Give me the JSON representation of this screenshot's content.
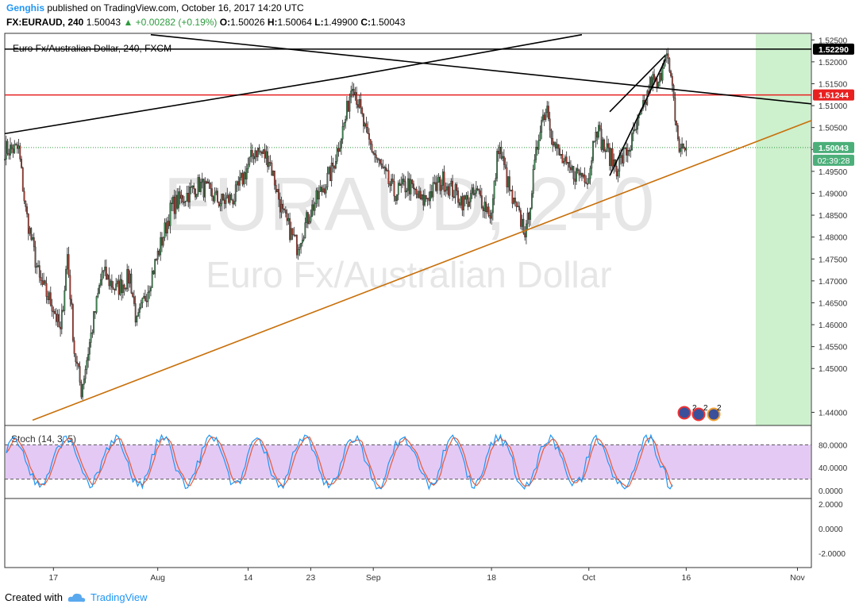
{
  "header": {
    "author": "Genghis",
    "published": "published on TradingView.com, October 16, 2017 14:20 UTC",
    "symbol": "FX:EURAUD, 240",
    "last": "1.50043",
    "change": "+0.00282 (+0.19%)",
    "o_label": "O:",
    "o_value": "1.50026",
    "h_label": "H:",
    "h_value": "1.50064",
    "l_label": "L:",
    "l_value": "1.49900",
    "c_label": "C:",
    "c_value": "1.50043"
  },
  "chart_data": {
    "type": "candlestick",
    "legend_title": "Euro Fx/Australian Dollar, 240, FXCM",
    "watermark_symbol": "EURAUD, 240",
    "watermark_name": "Euro Fx/Australian Dollar",
    "ylim": [
      1.437,
      1.5265
    ],
    "y_ticks": [
      "1.52500",
      "1.52000",
      "1.51500",
      "1.51000",
      "1.50500",
      "1.50000",
      "1.49500",
      "1.49000",
      "1.48500",
      "1.48000",
      "1.47500",
      "1.47000",
      "1.46500",
      "1.46000",
      "1.45500",
      "1.45000",
      "1.44000"
    ],
    "x_ticks": [
      "17",
      "Aug",
      "14",
      "23",
      "Sep",
      "18",
      "Oct",
      "16",
      "Nov"
    ],
    "price_labels": [
      {
        "value": 1.5229,
        "text": "1.52290",
        "bg": "#000000",
        "color": "#ffffff"
      },
      {
        "value": 1.51244,
        "text": "1.51244",
        "bg": "#e82020",
        "color": "#ffffff"
      },
      {
        "value": 1.50043,
        "text": "1.50043",
        "bg": "#4caf7a",
        "color": "#ffffff"
      }
    ],
    "countdown": "02:39:28",
    "anchor_closes": [
      {
        "date": "2017-07-10",
        "close": 1.5
      },
      {
        "date": "2017-07-12",
        "close": 1.5
      },
      {
        "date": "2017-07-13",
        "close": 1.486
      },
      {
        "date": "2017-07-15",
        "close": 1.47
      },
      {
        "date": "2017-07-17",
        "close": 1.464
      },
      {
        "date": "2017-07-18",
        "close": 1.458
      },
      {
        "date": "2017-07-19",
        "close": 1.476
      },
      {
        "date": "2017-07-20",
        "close": 1.454
      },
      {
        "date": "2017-07-21",
        "close": 1.445
      },
      {
        "date": "2017-07-24",
        "close": 1.472
      },
      {
        "date": "2017-07-26",
        "close": 1.468
      },
      {
        "date": "2017-07-28",
        "close": 1.471
      },
      {
        "date": "2017-07-29",
        "close": 1.46
      },
      {
        "date": "2017-08-01",
        "close": 1.476
      },
      {
        "date": "2017-08-03",
        "close": 1.487
      },
      {
        "date": "2017-08-07",
        "close": 1.492
      },
      {
        "date": "2017-08-10",
        "close": 1.488
      },
      {
        "date": "2017-08-12",
        "close": 1.489
      },
      {
        "date": "2017-08-15",
        "close": 1.5
      },
      {
        "date": "2017-08-17",
        "close": 1.498
      },
      {
        "date": "2017-08-19",
        "close": 1.485
      },
      {
        "date": "2017-08-21",
        "close": 1.478
      },
      {
        "date": "2017-08-23",
        "close": 1.486
      },
      {
        "date": "2017-08-26",
        "close": 1.495
      },
      {
        "date": "2017-08-28",
        "close": 1.507
      },
      {
        "date": "2017-08-29",
        "close": 1.516
      },
      {
        "date": "2017-08-31",
        "close": 1.503
      },
      {
        "date": "2017-09-02",
        "close": 1.496
      },
      {
        "date": "2017-09-04",
        "close": 1.49
      },
      {
        "date": "2017-09-06",
        "close": 1.492
      },
      {
        "date": "2017-09-08",
        "close": 1.488
      },
      {
        "date": "2017-09-11",
        "close": 1.493
      },
      {
        "date": "2017-09-14",
        "close": 1.488
      },
      {
        "date": "2017-09-16",
        "close": 1.49
      },
      {
        "date": "2017-09-18",
        "close": 1.485
      },
      {
        "date": "2017-09-19",
        "close": 1.501
      },
      {
        "date": "2017-09-21",
        "close": 1.488
      },
      {
        "date": "2017-09-23",
        "close": 1.481
      },
      {
        "date": "2017-09-25",
        "close": 1.506
      },
      {
        "date": "2017-09-26",
        "close": 1.51
      },
      {
        "date": "2017-09-27",
        "close": 1.501
      },
      {
        "date": "2017-09-29",
        "close": 1.495
      },
      {
        "date": "2017-10-02",
        "close": 1.494
      },
      {
        "date": "2017-10-03",
        "close": 1.506
      },
      {
        "date": "2017-10-04",
        "close": 1.501
      },
      {
        "date": "2017-10-06",
        "close": 1.496
      },
      {
        "date": "2017-10-08",
        "close": 1.501
      },
      {
        "date": "2017-10-10",
        "close": 1.51
      },
      {
        "date": "2017-10-11",
        "close": 1.516
      },
      {
        "date": "2017-10-12",
        "close": 1.514
      },
      {
        "date": "2017-10-13",
        "close": 1.5236
      },
      {
        "date": "2017-10-14",
        "close": 1.513
      },
      {
        "date": "2017-10-15",
        "close": 1.5
      },
      {
        "date": "2017-10-16",
        "close": 1.50043
      }
    ],
    "horizontal_lines": [
      {
        "value": 1.5229,
        "color": "#000000"
      },
      {
        "value": 1.51244,
        "color": "#e82020"
      }
    ],
    "trend_lines": [
      {
        "from": [
          "2017-07-10",
          1.5036
        ],
        "to": [
          "2017-08-28",
          1.5165
        ],
        "color": "#000000"
      },
      {
        "from": [
          "2017-08-28",
          1.5165
        ],
        "to": [
          "2017-10-01",
          1.5262
        ],
        "color": "#000000"
      },
      {
        "from": [
          "2017-07-31",
          1.5262
        ],
        "to": [
          "2017-11-03",
          1.5104
        ],
        "color": "#000000"
      },
      {
        "from": [
          "2017-07-14",
          1.4382
        ],
        "to": [
          "2017-11-03",
          1.5066
        ],
        "color": "#c8700a"
      },
      {
        "from": [
          "2017-10-05",
          1.5086
        ],
        "to": [
          "2017-10-13",
          1.5215
        ],
        "color": "#000000"
      },
      {
        "from": [
          "2017-10-05",
          1.494
        ],
        "to": [
          "2017-10-13",
          1.5205
        ],
        "color": "#000000"
      }
    ],
    "highlight_period": {
      "from": "2017-10-26",
      "to": "2017-11-03",
      "color": "#c8eec8"
    },
    "stochastic": {
      "label": "Stoch (14, 3, 5)",
      "levels": [
        80,
        20
      ],
      "ticks": [
        "80.0000",
        "40.0000",
        "0.0000"
      ],
      "k_color": "#2196f3",
      "d_color": "#e55a3a"
    },
    "lower_pane": {
      "ticks": [
        "2.0000",
        "0.0000",
        "-2.0000"
      ]
    },
    "event_badges": [
      "2",
      "2",
      "2"
    ]
  },
  "footer": {
    "created_with": "Created with",
    "brand": "TradingView"
  }
}
